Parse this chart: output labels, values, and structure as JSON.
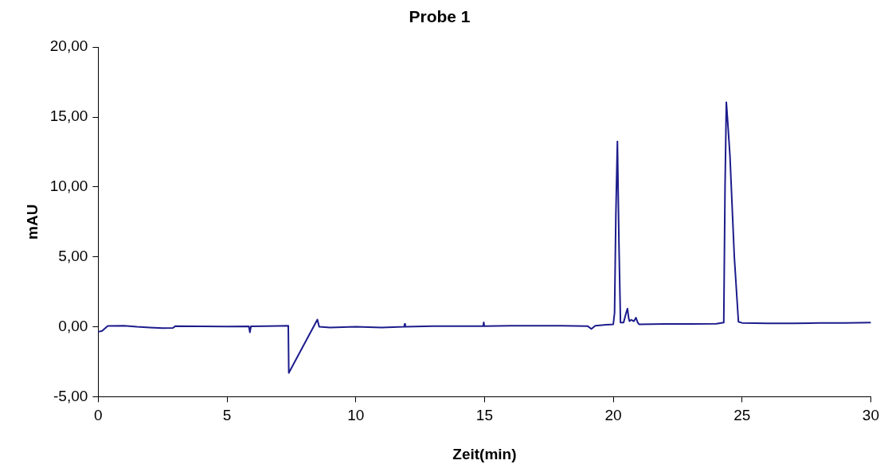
{
  "chart_data": {
    "type": "line",
    "title": "Probe 1",
    "xlabel": "Zeit(min)",
    "ylabel": "mAU",
    "xlim": [
      0,
      30
    ],
    "xticks": [
      0,
      5,
      10,
      15,
      20,
      25,
      30
    ],
    "ylim": [
      -5,
      20
    ],
    "yticks": [
      {
        "value": -5,
        "label": "-5,00"
      },
      {
        "value": 0,
        "label": "0,00"
      },
      {
        "value": 5,
        "label": "5,00"
      },
      {
        "value": 10,
        "label": "10,00"
      },
      {
        "value": 15,
        "label": "15,00"
      },
      {
        "value": 20,
        "label": "20,00"
      }
    ],
    "grid": false,
    "legend": false,
    "marker": "none",
    "line_style": "solid",
    "series": [
      {
        "color": "#1c1c8c",
        "x": [
          0,
          0.15,
          0.37,
          1.0,
          1.5,
          2.0,
          2.5,
          2.9,
          3.0,
          4.0,
          5.0,
          5.85,
          5.89,
          5.93,
          6.5,
          7.0,
          7.38,
          7.4,
          8.0,
          8.51,
          8.58,
          9.0,
          10.0,
          11.0,
          11.88,
          11.9,
          11.92,
          13.0,
          14.95,
          14.97,
          14.99,
          16.0,
          17.0,
          18.0,
          19.0,
          19.15,
          19.3,
          20.0,
          20.05,
          20.1,
          20.16,
          20.22,
          20.28,
          20.4,
          20.5,
          20.55,
          20.6,
          20.63,
          20.7,
          20.8,
          20.88,
          20.95,
          21.0,
          22.0,
          23.0,
          24.0,
          24.29,
          24.34,
          24.39,
          24.45,
          24.53,
          24.7,
          24.86,
          25.0,
          26.0,
          27.0,
          28.0,
          29.0,
          30.0
        ],
        "values": [
          -0.36,
          -0.3,
          0.06,
          0.08,
          0.0,
          -0.05,
          -0.1,
          -0.08,
          0.05,
          0.03,
          0.02,
          0.03,
          -0.4,
          0.03,
          0.05,
          0.06,
          0.08,
          -3.3,
          -1.24,
          0.52,
          0.0,
          -0.05,
          0.0,
          -0.05,
          0.0,
          0.2,
          0.0,
          0.05,
          0.05,
          0.32,
          0.05,
          0.08,
          0.08,
          0.08,
          0.05,
          -0.15,
          0.08,
          0.18,
          1.0,
          8.0,
          13.25,
          6.0,
          0.3,
          0.3,
          1.0,
          1.3,
          0.6,
          0.4,
          0.5,
          0.4,
          0.65,
          0.3,
          0.18,
          0.2,
          0.2,
          0.22,
          0.3,
          10.0,
          16.05,
          14.5,
          12.25,
          5.0,
          0.36,
          0.28,
          0.25,
          0.25,
          0.27,
          0.28,
          0.3
        ]
      }
    ]
  }
}
